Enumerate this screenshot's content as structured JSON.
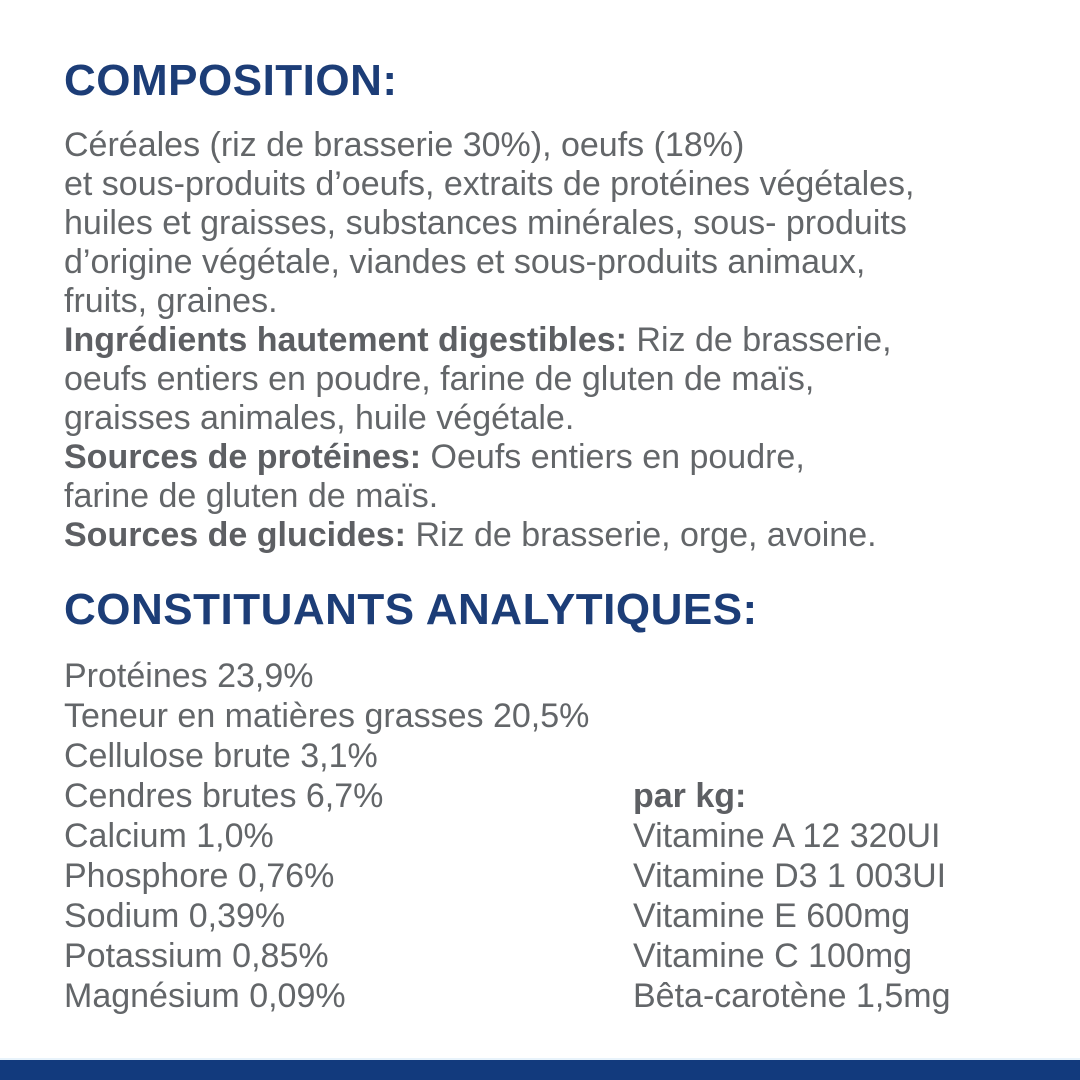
{
  "colors": {
    "brand_navy": "#1c3d77",
    "text_gray": "#636669",
    "footer_navy": "#123a7d"
  },
  "composition": {
    "title": "COMPOSITION:",
    "lines": [
      "Céréales (riz de brasserie 30%), oeufs (18%)",
      "et sous-produits d’oeufs, extraits de protéines végétales,",
      "huiles et graisses, substances minérales, sous- produits",
      "d’origine végétale, viandes et sous-produits animaux,",
      "fruits, graines."
    ],
    "sections": [
      {
        "lead": "Ingrédients hautement digestibles:",
        "rest": " Riz de brasserie,",
        "lines": [
          "oeufs entiers en poudre, farine de gluten de maïs,",
          "graisses animales, huile végétale."
        ]
      },
      {
        "lead": "Sources de protéines:",
        "rest": " Oeufs entiers en poudre,",
        "lines": [
          "farine de gluten de maïs."
        ]
      },
      {
        "lead": "Sources de glucides:",
        "rest": " Riz de brasserie, orge, avoine."
      }
    ]
  },
  "analytical": {
    "title": "CONSTITUANTS ANALYTIQUES:",
    "items": [
      "Protéines 23,9%",
      "Teneur en matières grasses 20,5%",
      "Cellulose brute 3,1%",
      "Cendres brutes 6,7%",
      "Calcium 1,0%",
      "Phosphore 0,76%",
      "Sodium 0,39%",
      "Potassium 0,85%",
      "Magnésium 0,09%"
    ],
    "per_kg": {
      "title": "par kg:",
      "items": [
        "Vitamine A 12 320UI",
        "Vitamine D3 1 003UI",
        "Vitamine E 600mg",
        "Vitamine C 100mg",
        "Bêta-carotène 1,5mg"
      ]
    }
  }
}
